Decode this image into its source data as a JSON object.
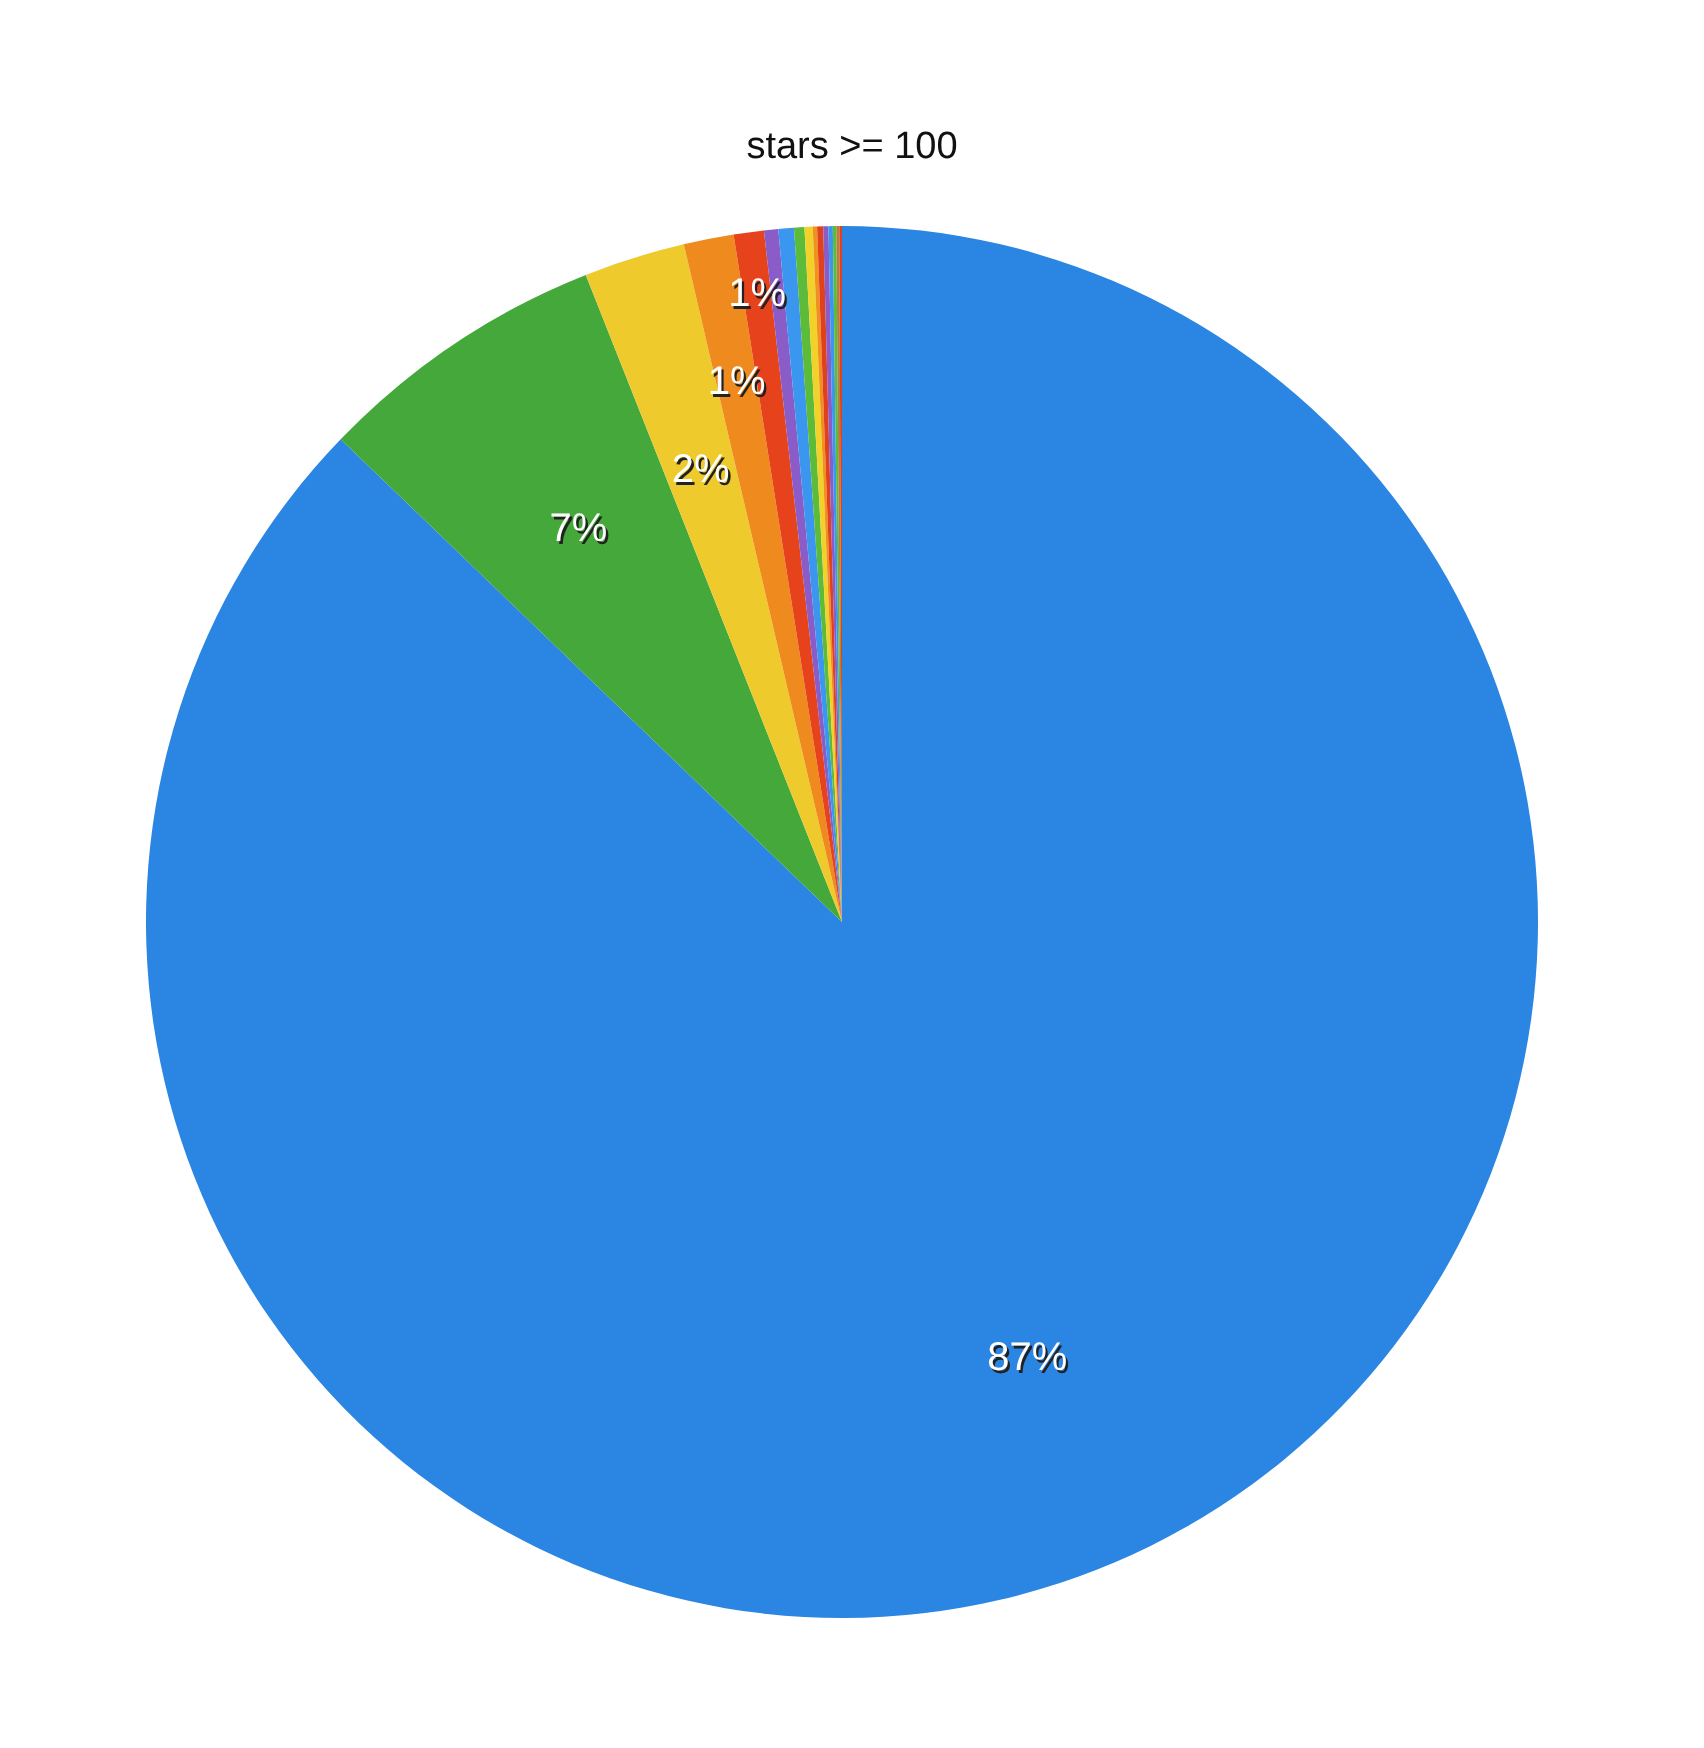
{
  "chart_data": {
    "type": "pie",
    "title": "stars >= 100",
    "categories": [
      null,
      null,
      null,
      null,
      null,
      null,
      null,
      null,
      null,
      null,
      null,
      null,
      null,
      null,
      null,
      null
    ],
    "values": [
      87.2,
      6.8,
      2.35,
      1.16,
      0.7,
      0.33,
      0.36,
      0.24,
      0.19,
      0.1,
      0.14,
      0.12,
      0.1,
      0.08,
      0.07,
      0.06
    ],
    "colors": [
      "#2a86e2",
      "#45a83a",
      "#efca2c",
      "#ef8a1e",
      "#e6421c",
      "#8a5cc8",
      "#3a96ee",
      "#5cbc3a",
      "#f2d22a",
      "#f0901e",
      "#e0401c",
      "#8a5cc8",
      "#3a96ee",
      "#5cbc3a",
      "#b08040",
      "#e0401c"
    ],
    "value_labels": [
      "87%",
      "7%",
      "2%",
      "1%",
      "1%",
      null,
      null,
      null,
      null,
      null,
      null,
      null,
      null,
      null,
      null,
      null
    ],
    "legend": false
  }
}
